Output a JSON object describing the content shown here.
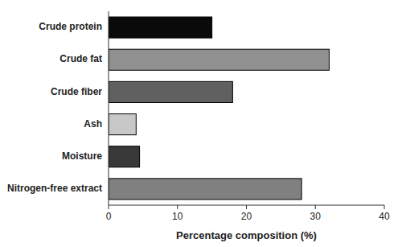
{
  "chart_data": {
    "type": "bar",
    "orientation": "horizontal",
    "categories": [
      "Crude protein",
      "Crude fat",
      "Crude fiber",
      "Ash",
      "Moisture",
      "Nitrogen-free extract"
    ],
    "values": [
      15.0,
      32.0,
      18.0,
      4.0,
      4.5,
      28.0
    ],
    "colors": [
      "#0a0a0a",
      "#909090",
      "#606060",
      "#c8c8c8",
      "#383838",
      "#808080"
    ],
    "xlabel": "Percentage composition (%)",
    "xlim": [
      0,
      40
    ],
    "xticks": [
      0,
      10,
      20,
      30,
      40
    ],
    "grid": false
  }
}
